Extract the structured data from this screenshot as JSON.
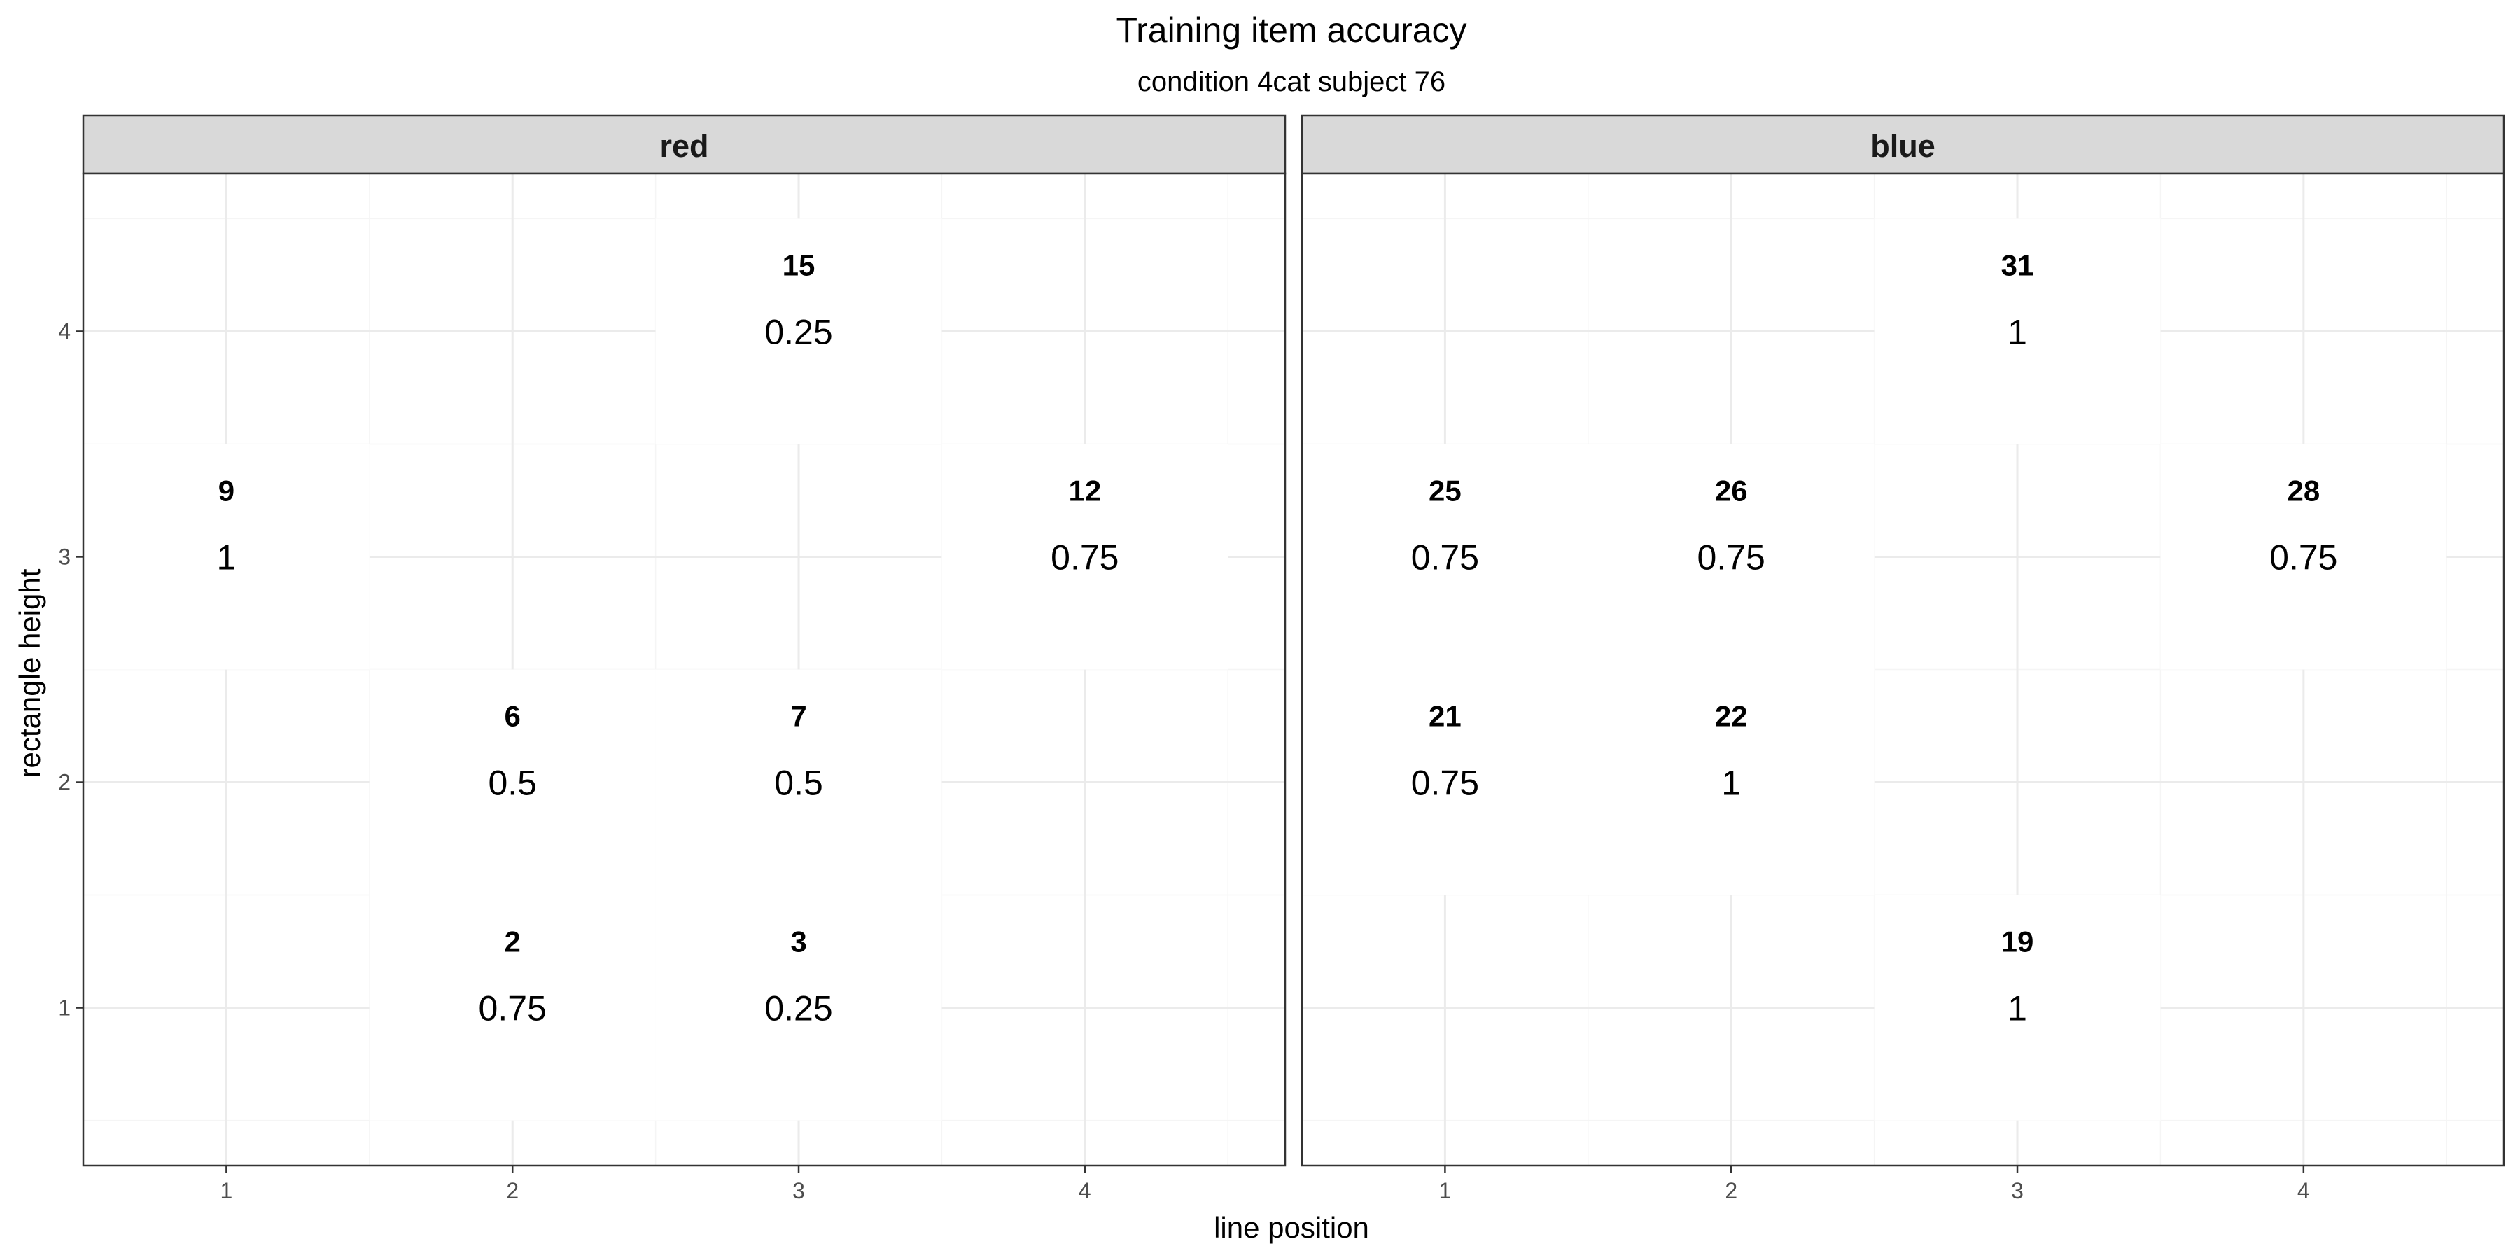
{
  "chart_data": {
    "type": "heatmap",
    "title": "Training item accuracy",
    "subtitle": "condition 4cat  subject 76",
    "xlabel": "line position",
    "ylabel": "rectangle height",
    "x_ticks": [
      1,
      2,
      3,
      4
    ],
    "y_ticks": [
      1,
      2,
      3,
      4
    ],
    "xlim": [
      0.5,
      4.7
    ],
    "ylim": [
      0.3,
      4.7
    ],
    "grid": true,
    "facets": [
      {
        "label": "red",
        "cells": [
          {
            "x": 3,
            "y": 4,
            "id": "15",
            "accuracy": "0.25"
          },
          {
            "x": 1,
            "y": 3,
            "id": "9",
            "accuracy": "1"
          },
          {
            "x": 4,
            "y": 3,
            "id": "12",
            "accuracy": "0.75"
          },
          {
            "x": 2,
            "y": 2,
            "id": "6",
            "accuracy": "0.5"
          },
          {
            "x": 3,
            "y": 2,
            "id": "7",
            "accuracy": "0.5"
          },
          {
            "x": 2,
            "y": 1,
            "id": "2",
            "accuracy": "0.75"
          },
          {
            "x": 3,
            "y": 1,
            "id": "3",
            "accuracy": "0.25"
          }
        ]
      },
      {
        "label": "blue",
        "cells": [
          {
            "x": 3,
            "y": 4,
            "id": "31",
            "accuracy": "1"
          },
          {
            "x": 1,
            "y": 3,
            "id": "25",
            "accuracy": "0.75"
          },
          {
            "x": 2,
            "y": 3,
            "id": "26",
            "accuracy": "0.75"
          },
          {
            "x": 4,
            "y": 3,
            "id": "28",
            "accuracy": "0.75"
          },
          {
            "x": 1,
            "y": 2,
            "id": "21",
            "accuracy": "0.75"
          },
          {
            "x": 2,
            "y": 2,
            "id": "22",
            "accuracy": "1"
          },
          {
            "x": 3,
            "y": 1,
            "id": "19",
            "accuracy": "1"
          }
        ]
      }
    ]
  },
  "colors": {
    "panel_border": "#333333",
    "strip_fill": "#d9d9d9",
    "grid_major": "#ebebeb",
    "grid_minor": "#f5f5f5",
    "tile_fill": "#ffffff",
    "text": "#000000"
  }
}
